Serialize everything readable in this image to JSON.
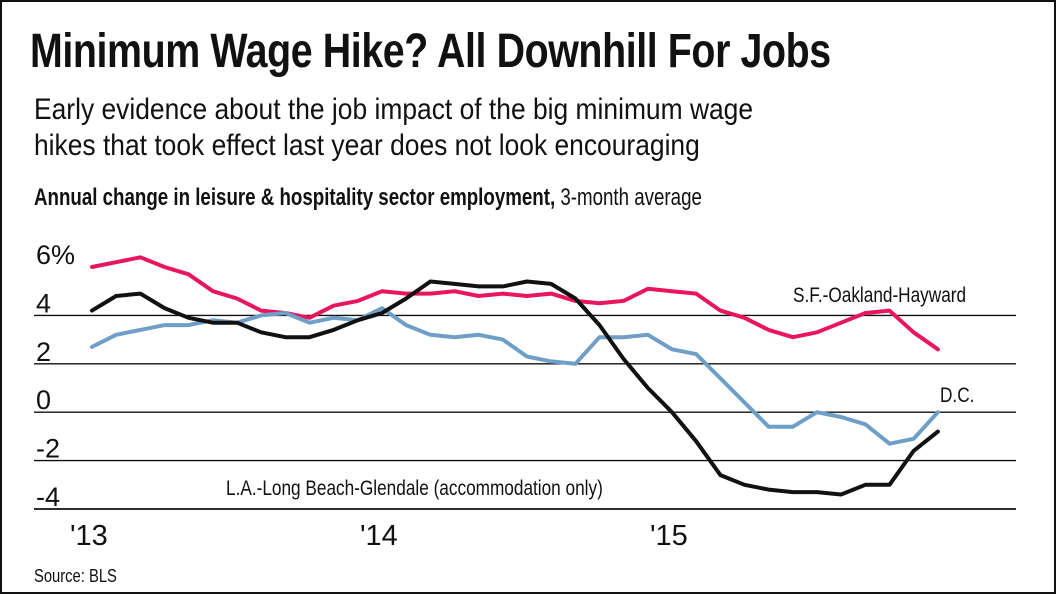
{
  "title": "Minimum Wage Hike? All Downhill For Jobs",
  "subtitle_line1": "Early evidence about the job impact of the big minimum wage",
  "subtitle_line2": "hikes that took effect last year does not look encouraging",
  "axis_desc_bold": "Annual change in leisure & hospitality sector employment,",
  "axis_desc_rest": " 3-month average",
  "source": "Source: BLS",
  "colors": {
    "sf": "#e8175d",
    "dc": "#6f9ec6",
    "la": "#111111",
    "grid": "#111111"
  },
  "chart_data": {
    "type": "line",
    "title": "Annual change in leisure & hospitality sector employment, 3-month average",
    "ylabel": "%",
    "ylim": [
      -4,
      6
    ],
    "yticks": [
      6,
      4,
      2,
      0,
      -2,
      -4
    ],
    "ytick_labels": [
      "6%",
      "4",
      "2",
      "0",
      "-2",
      "-4"
    ],
    "xlim": [
      2013.0,
      2016.0
    ],
    "xticks": [
      2013.0,
      2014.0,
      2015.0
    ],
    "xtick_labels": [
      "'13",
      "'14",
      "'15"
    ],
    "series": [
      {
        "name": "S.F.-Oakland-Hayward",
        "label": "S.F.-Oakland-Hayward",
        "color_key": "sf",
        "x": [
          2013.0,
          2013.083,
          2013.167,
          2013.25,
          2013.333,
          2013.417,
          2013.5,
          2013.583,
          2013.667,
          2013.75,
          2013.833,
          2013.917,
          2014.0,
          2014.083,
          2014.167,
          2014.25,
          2014.333,
          2014.417,
          2014.5,
          2014.583,
          2014.667,
          2014.75,
          2014.833,
          2014.917,
          2015.0,
          2015.083,
          2015.167,
          2015.25,
          2015.333,
          2015.417,
          2015.5,
          2015.583,
          2015.667,
          2015.75,
          2015.833,
          2015.917
        ],
        "values": [
          6.0,
          6.2,
          6.4,
          6.0,
          5.7,
          5.0,
          4.7,
          4.2,
          4.1,
          3.9,
          4.4,
          4.6,
          5.0,
          4.9,
          4.9,
          5.0,
          4.8,
          4.9,
          4.8,
          4.9,
          4.6,
          4.5,
          4.6,
          5.1,
          5.0,
          4.9,
          4.2,
          3.9,
          3.4,
          3.1,
          3.3,
          3.7,
          4.1,
          4.2,
          3.3,
          2.6
        ]
      },
      {
        "name": "D.C.",
        "label": "D.C.",
        "color_key": "dc",
        "x": [
          2013.0,
          2013.083,
          2013.167,
          2013.25,
          2013.333,
          2013.417,
          2013.5,
          2013.583,
          2013.667,
          2013.75,
          2013.833,
          2013.917,
          2014.0,
          2014.083,
          2014.167,
          2014.25,
          2014.333,
          2014.417,
          2014.5,
          2014.583,
          2014.667,
          2014.75,
          2014.833,
          2014.917,
          2015.0,
          2015.083,
          2015.167,
          2015.25,
          2015.333,
          2015.417,
          2015.5,
          2015.583,
          2015.667,
          2015.75,
          2015.833,
          2015.917
        ],
        "values": [
          2.7,
          3.2,
          3.4,
          3.6,
          3.6,
          3.8,
          3.7,
          4.0,
          4.1,
          3.7,
          3.9,
          3.8,
          4.3,
          3.6,
          3.2,
          3.1,
          3.2,
          3.0,
          2.3,
          2.1,
          2.0,
          3.1,
          3.1,
          3.2,
          2.6,
          2.4,
          1.4,
          0.4,
          -0.6,
          -0.6,
          0.0,
          -0.2,
          -0.5,
          -1.3,
          -1.1,
          0.0
        ]
      },
      {
        "name": "L.A.-Long Beach-Glendale (accommodation only)",
        "label": "L.A.-Long Beach-Glendale (accommodation only)",
        "color_key": "la",
        "x": [
          2013.0,
          2013.083,
          2013.167,
          2013.25,
          2013.333,
          2013.417,
          2013.5,
          2013.583,
          2013.667,
          2013.75,
          2013.833,
          2013.917,
          2014.0,
          2014.083,
          2014.167,
          2014.25,
          2014.333,
          2014.417,
          2014.5,
          2014.583,
          2014.667,
          2014.75,
          2014.833,
          2014.917,
          2015.0,
          2015.083,
          2015.167,
          2015.25,
          2015.333,
          2015.417,
          2015.5,
          2015.583,
          2015.667,
          2015.75,
          2015.833,
          2015.917
        ],
        "values": [
          4.2,
          4.8,
          4.9,
          4.3,
          3.9,
          3.7,
          3.7,
          3.3,
          3.1,
          3.1,
          3.4,
          3.8,
          4.1,
          4.7,
          5.4,
          5.3,
          5.2,
          5.2,
          5.4,
          5.3,
          4.7,
          3.6,
          2.2,
          1.0,
          0.0,
          -1.2,
          -2.6,
          -3.0,
          -3.2,
          -3.3,
          -3.3,
          -3.4,
          -3.0,
          -3.0,
          -1.6,
          -0.8
        ]
      }
    ]
  }
}
